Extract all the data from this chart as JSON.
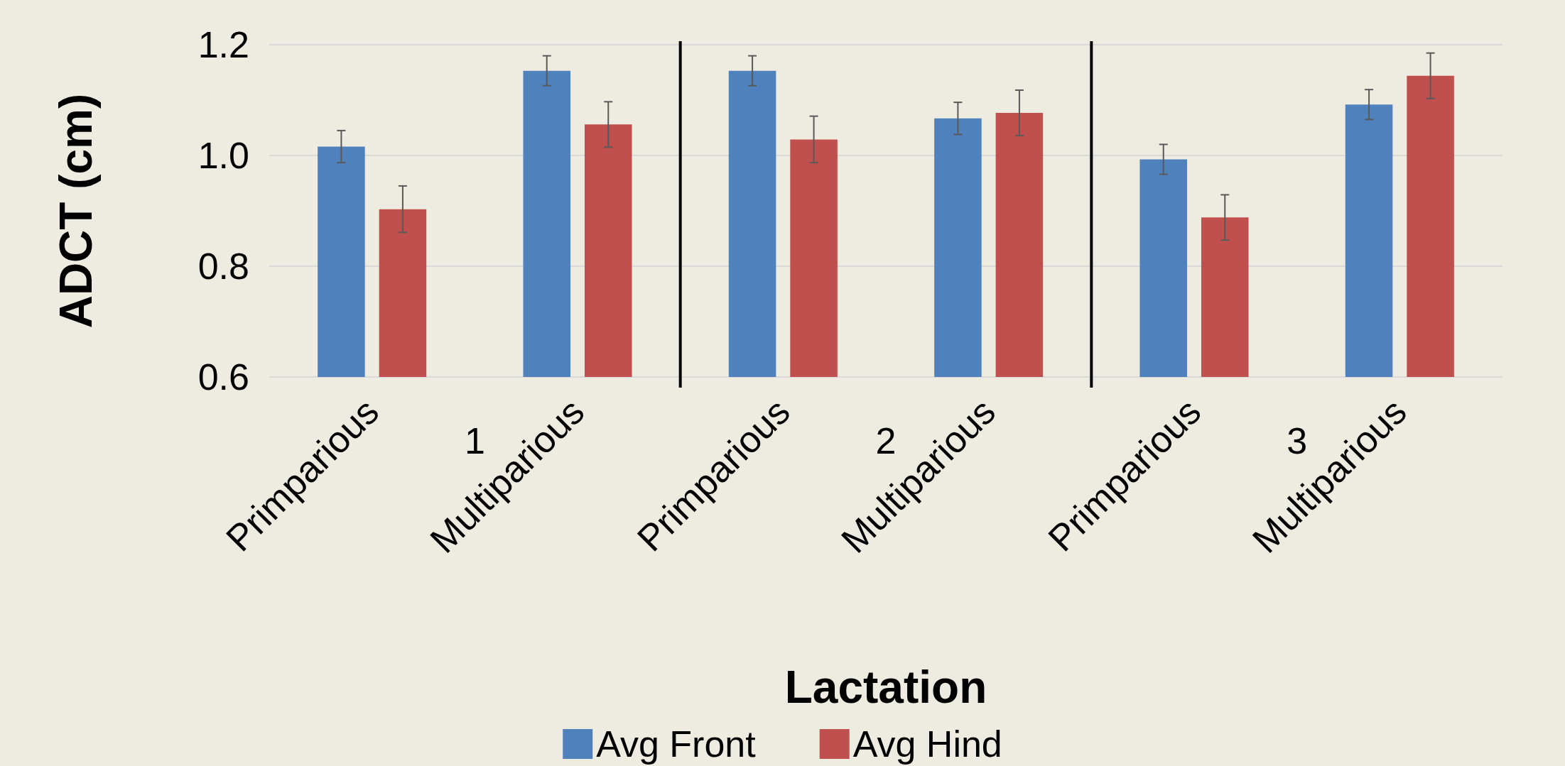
{
  "chart_data": {
    "type": "bar",
    "xlabel": "Lactation",
    "ylabel": "ADCT (cm)",
    "categories": [
      "Primparious",
      "Multiparious",
      "Primparious",
      "Multiparious",
      "Primparious",
      "Multiparious"
    ],
    "series": [
      {
        "name": "Avg Front",
        "color": "#4f81bd",
        "values": [
          1.016,
          1.153,
          1.153,
          1.067,
          0.993,
          1.092
        ],
        "errors": [
          0.029,
          0.027,
          0.027,
          0.029,
          0.027,
          0.027
        ]
      },
      {
        "name": "Avg Hind",
        "color": "#c0504d",
        "values": [
          0.903,
          1.056,
          1.029,
          1.077,
          0.888,
          1.144
        ],
        "errors": [
          0.042,
          0.041,
          0.042,
          0.041,
          0.041,
          0.041
        ]
      }
    ],
    "annotations": [
      "1",
      "2",
      "3"
    ],
    "ylim": [
      0.6,
      1.2
    ],
    "yticks": [
      0.6,
      0.8,
      {
        "value": 1,
        "label": "1.0"
      },
      1.2
    ],
    "grid": "y",
    "legend": "bottom"
  }
}
